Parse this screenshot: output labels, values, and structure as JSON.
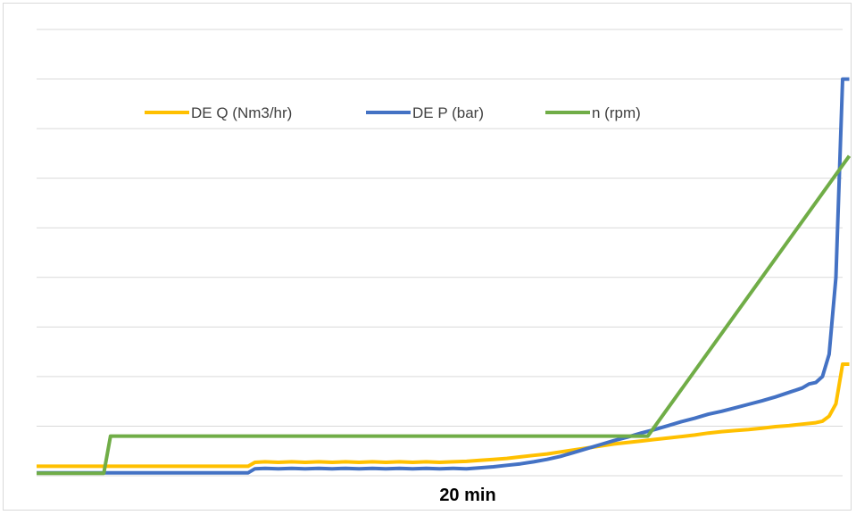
{
  "chart_data": {
    "type": "line",
    "title": "",
    "xlabel": "20 min",
    "ylabel": "",
    "xlim": [
      0,
      120
    ],
    "ylim": [
      0,
      9
    ],
    "gridlines": "horizontal",
    "legend_position": "top",
    "series": [
      {
        "name": "DE Q (Nm3/hr)",
        "color": "#FFC000",
        "points": [
          [
            0,
            0.19
          ],
          [
            31.5,
            0.19
          ],
          [
            32.5,
            0.27
          ],
          [
            34,
            0.28
          ],
          [
            36,
            0.27
          ],
          [
            38,
            0.28
          ],
          [
            40,
            0.27
          ],
          [
            42,
            0.28
          ],
          [
            44,
            0.27
          ],
          [
            46,
            0.28
          ],
          [
            48,
            0.27
          ],
          [
            50,
            0.28
          ],
          [
            52,
            0.27
          ],
          [
            54,
            0.28
          ],
          [
            56,
            0.27
          ],
          [
            58,
            0.28
          ],
          [
            60,
            0.27
          ],
          [
            62,
            0.28
          ],
          [
            64,
            0.29
          ],
          [
            66,
            0.31
          ],
          [
            68,
            0.33
          ],
          [
            70,
            0.35
          ],
          [
            72,
            0.38
          ],
          [
            74,
            0.41
          ],
          [
            76,
            0.44
          ],
          [
            78,
            0.48
          ],
          [
            80,
            0.52
          ],
          [
            82,
            0.56
          ],
          [
            84,
            0.6
          ],
          [
            86,
            0.64
          ],
          [
            88,
            0.67
          ],
          [
            90,
            0.7
          ],
          [
            92,
            0.73
          ],
          [
            94,
            0.76
          ],
          [
            96,
            0.79
          ],
          [
            98,
            0.82
          ],
          [
            100,
            0.86
          ],
          [
            102,
            0.89
          ],
          [
            104,
            0.91
          ],
          [
            106,
            0.93
          ],
          [
            108,
            0.96
          ],
          [
            110,
            0.99
          ],
          [
            112,
            1.01
          ],
          [
            114,
            1.04
          ],
          [
            116,
            1.07
          ],
          [
            117,
            1.1
          ],
          [
            118,
            1.2
          ],
          [
            119,
            1.45
          ],
          [
            120,
            2.25
          ],
          [
            121,
            2.25
          ]
        ]
      },
      {
        "name": "DE P (bar)",
        "color": "#4472C4",
        "points": [
          [
            0,
            0.06
          ],
          [
            31.5,
            0.06
          ],
          [
            32.5,
            0.14
          ],
          [
            34,
            0.15
          ],
          [
            36,
            0.14
          ],
          [
            38,
            0.15
          ],
          [
            40,
            0.14
          ],
          [
            42,
            0.15
          ],
          [
            44,
            0.14
          ],
          [
            46,
            0.15
          ],
          [
            48,
            0.14
          ],
          [
            50,
            0.15
          ],
          [
            52,
            0.14
          ],
          [
            54,
            0.15
          ],
          [
            56,
            0.14
          ],
          [
            58,
            0.15
          ],
          [
            60,
            0.14
          ],
          [
            62,
            0.15
          ],
          [
            64,
            0.14
          ],
          [
            66,
            0.16
          ],
          [
            68,
            0.18
          ],
          [
            70,
            0.21
          ],
          [
            72,
            0.24
          ],
          [
            74,
            0.28
          ],
          [
            76,
            0.33
          ],
          [
            78,
            0.39
          ],
          [
            80,
            0.47
          ],
          [
            82,
            0.55
          ],
          [
            84,
            0.63
          ],
          [
            86,
            0.71
          ],
          [
            88,
            0.78
          ],
          [
            90,
            0.86
          ],
          [
            92,
            0.93
          ],
          [
            94,
            1.01
          ],
          [
            96,
            1.09
          ],
          [
            98,
            1.16
          ],
          [
            100,
            1.24
          ],
          [
            102,
            1.3
          ],
          [
            104,
            1.37
          ],
          [
            106,
            1.44
          ],
          [
            108,
            1.51
          ],
          [
            110,
            1.59
          ],
          [
            112,
            1.68
          ],
          [
            114,
            1.77
          ],
          [
            115,
            1.85
          ],
          [
            116,
            1.88
          ],
          [
            117,
            2.0
          ],
          [
            118,
            2.45
          ],
          [
            119,
            4.0
          ],
          [
            120,
            8.0
          ],
          [
            121,
            8.0
          ]
        ]
      },
      {
        "name": "n (rpm)",
        "color": "#70AD47",
        "points": [
          [
            0,
            0.05
          ],
          [
            10,
            0.05
          ],
          [
            11,
            0.8
          ],
          [
            91,
            0.8
          ],
          [
            121,
            6.45
          ]
        ]
      }
    ]
  }
}
